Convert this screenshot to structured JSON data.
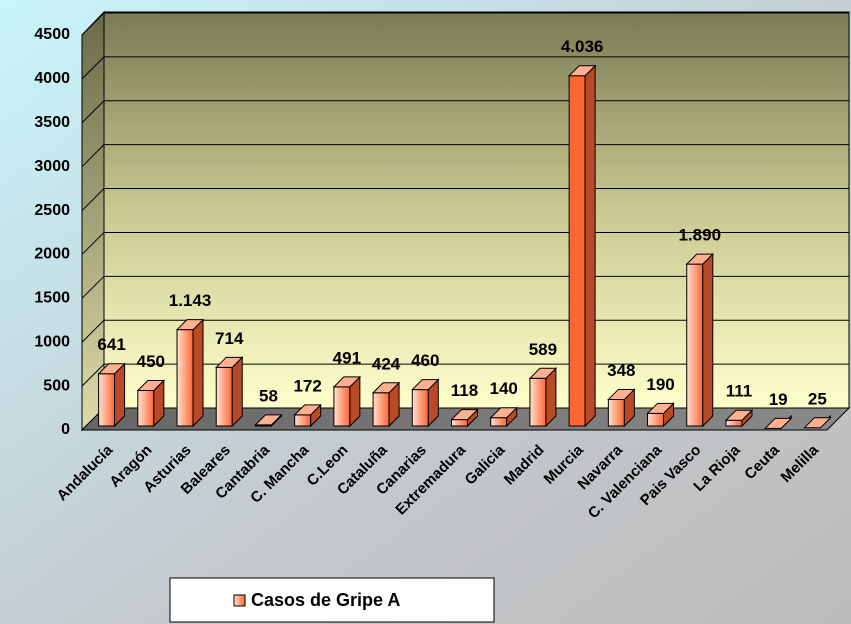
{
  "chart_data": {
    "type": "bar3d",
    "categories": [
      "Andalucía",
      "Aragón",
      "Asturias",
      "Baleares",
      "Cantabria",
      "C. Mancha",
      "C.Leon",
      "Cataluña",
      "Canarias",
      "Extremadura",
      "Galicia",
      "Madrid",
      "Murcia",
      "Navarra",
      "C. Valenciana",
      "Pais Vasco",
      "La Rioja",
      "Ceuta",
      "Melilla"
    ],
    "series": [
      {
        "name": "Casos de Gripe A",
        "color": "#ff6633",
        "values": [
          641,
          450,
          1143,
          714,
          58,
          172,
          491,
          424,
          460,
          118,
          140,
          589,
          4036,
          348,
          190,
          1890,
          111,
          19,
          25
        ],
        "value_labels": [
          "641",
          "450",
          "1.143",
          "714",
          "58",
          "172",
          "491",
          "424",
          "460",
          "118",
          "140",
          "589",
          "4.036",
          "348",
          "190",
          "1.890",
          "111",
          "19",
          "25"
        ]
      }
    ],
    "ylim": [
      0,
      4500
    ],
    "yticks": [
      0,
      500,
      1000,
      1500,
      2000,
      2500,
      3000,
      3500,
      4000,
      4500
    ],
    "grid": true
  }
}
